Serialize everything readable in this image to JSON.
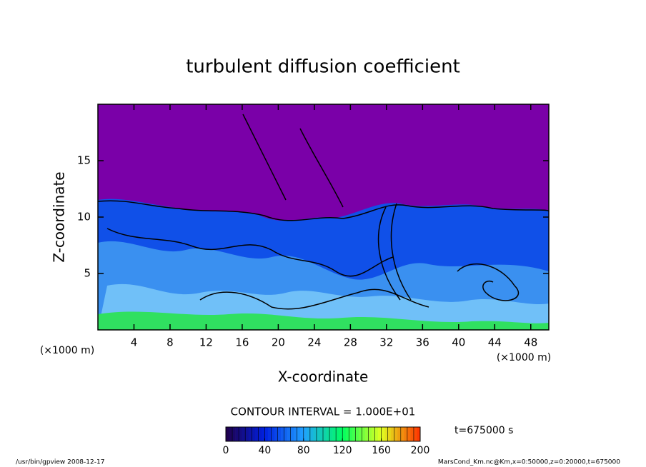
{
  "chart_data": {
    "type": "contour",
    "title": "turbulent diffusion coefficient",
    "xlabel": "X-coordinate",
    "ylabel": "Z-coordinate",
    "xunit": "(×1000 m)",
    "yunit": "(×1000 m)",
    "xlim": [
      0,
      50
    ],
    "xticks": [
      4,
      8,
      12,
      16,
      20,
      24,
      28,
      32,
      36,
      40,
      44,
      48
    ],
    "ylim": [
      0,
      20
    ],
    "yticks": [
      5,
      10,
      15
    ],
    "contour_interval_label": "CONTOUR INTERVAL = 1.000E+01",
    "time_label": "t=675000 s",
    "clim": [
      0,
      200
    ],
    "cticks": [
      0,
      40,
      80,
      120,
      160,
      200
    ],
    "colormap": [
      "#20004a",
      "#0020e0",
      "#20a0ff",
      "#00ff60",
      "#e0ff20",
      "#ff3000"
    ],
    "footer_left": "/usr/bin/gpview  2008-12-17",
    "footer_right": "MarsCond_Km.nc@Km,x=0:50000,z=0:20000,t=675000"
  }
}
